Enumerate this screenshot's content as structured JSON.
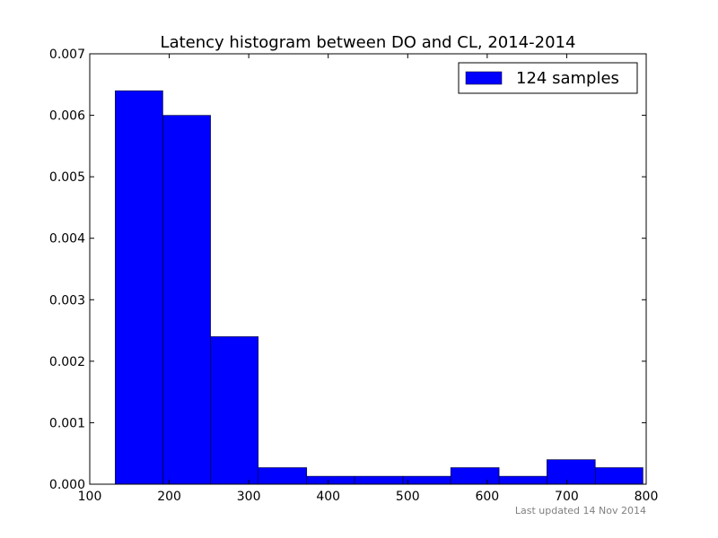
{
  "chart_data": {
    "type": "bar",
    "title": "Latency histogram between DO and CL, 2014-2014",
    "xlabel": "",
    "ylabel": "",
    "xlim": [
      100,
      800
    ],
    "ylim": [
      0,
      0.007
    ],
    "xticks": [
      100,
      200,
      300,
      400,
      500,
      600,
      700,
      800
    ],
    "yticks": [
      "0.000",
      "0.001",
      "0.002",
      "0.003",
      "0.004",
      "0.005",
      "0.006",
      "0.007"
    ],
    "bins": [
      {
        "start": 132,
        "end": 192,
        "value": 0.0064
      },
      {
        "start": 192,
        "end": 252,
        "value": 0.006
      },
      {
        "start": 252,
        "end": 312,
        "value": 0.0024
      },
      {
        "start": 312,
        "end": 373,
        "value": 0.00027
      },
      {
        "start": 373,
        "end": 433,
        "value": 0.00013
      },
      {
        "start": 433,
        "end": 494,
        "value": 0.00013
      },
      {
        "start": 494,
        "end": 554,
        "value": 0.00013
      },
      {
        "start": 554,
        "end": 615,
        "value": 0.00027
      },
      {
        "start": 615,
        "end": 675,
        "value": 0.00013
      },
      {
        "start": 675,
        "end": 736,
        "value": 0.0004
      },
      {
        "start": 736,
        "end": 796,
        "value": 0.00027
      }
    ],
    "series": [
      {
        "name": "124 samples",
        "color": "#0000ff"
      }
    ],
    "legend_position": "top-right",
    "grid": false
  },
  "footer": {
    "note": "Last updated 14 Nov 2014"
  }
}
